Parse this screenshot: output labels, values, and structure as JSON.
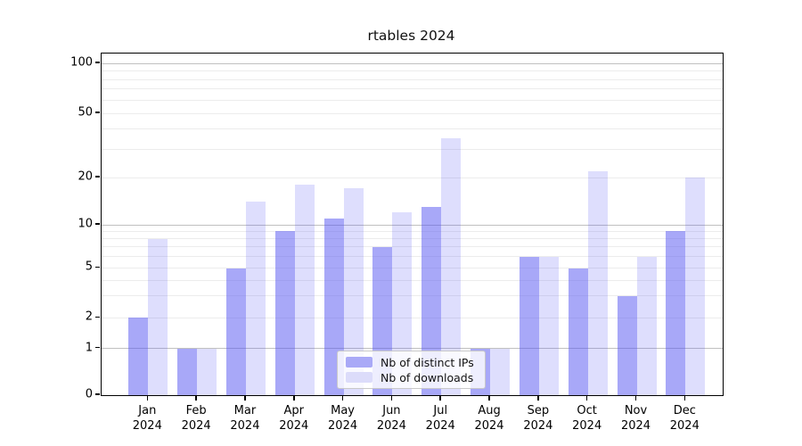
{
  "title": "rtables 2024",
  "legend": {
    "items": [
      {
        "label": "Nb of distinct IPs"
      },
      {
        "label": "Nb of downloads"
      }
    ]
  },
  "chart_data": {
    "type": "bar",
    "title": "rtables 2024",
    "categories": [
      "Jan",
      "Feb",
      "Mar",
      "Apr",
      "May",
      "Jun",
      "Jul",
      "Aug",
      "Sep",
      "Oct",
      "Nov",
      "Dec"
    ],
    "category_year": "2024",
    "series": [
      {
        "name": "Nb of distinct IPs",
        "color": "rgba(82,82,242,0.50)",
        "legend_color": "#a9a9f7",
        "values": [
          2,
          1,
          5,
          9,
          11,
          7,
          13,
          1,
          6,
          5,
          3,
          9
        ]
      },
      {
        "name": "Nb of downloads",
        "color": "rgba(82,82,242,0.19)",
        "legend_color": "#dcdcfa",
        "values": [
          8,
          1,
          14,
          18,
          17,
          12,
          35,
          1,
          6,
          22,
          6,
          20
        ]
      }
    ],
    "xlabel": "",
    "ylabel": "",
    "yticks": [
      0,
      1,
      2,
      5,
      10,
      20,
      50,
      100
    ],
    "major_gridlines": [
      1,
      10,
      100
    ],
    "minor_gridlines": [
      2,
      3,
      4,
      5,
      6,
      7,
      8,
      9,
      20,
      30,
      40,
      50,
      60,
      70,
      80,
      90
    ],
    "ylim": [
      0,
      115
    ],
    "yscale": "log1p-like",
    "grid": true,
    "legend_position": "lower center",
    "y_scale_anchors": [
      [
        0,
        0
      ],
      [
        1,
        0.137
      ],
      [
        2,
        0.2259
      ],
      [
        5,
        0.3721
      ],
      [
        10,
        0.4987
      ],
      [
        20,
        0.6371
      ],
      [
        50,
        0.8251
      ],
      [
        100,
        0.9713
      ],
      [
        115,
        1.0
      ]
    ]
  }
}
